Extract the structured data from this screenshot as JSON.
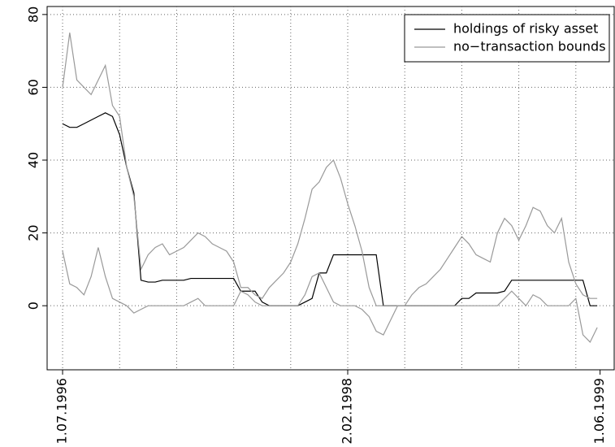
{
  "chart_data": {
    "type": "line",
    "x": [
      0,
      10,
      20,
      30,
      40,
      50,
      60,
      70,
      80,
      90,
      100,
      110,
      120,
      130,
      140,
      150,
      160,
      170,
      180,
      190,
      200,
      210,
      220,
      230,
      240,
      250,
      260,
      270,
      280,
      290,
      300,
      310,
      320,
      330,
      340,
      350,
      360,
      370,
      380,
      390,
      400,
      410,
      420,
      430,
      440,
      450,
      460,
      470,
      480,
      490,
      500,
      510,
      520,
      530,
      540,
      550,
      560,
      570,
      580,
      590,
      600,
      610,
      620,
      630,
      640,
      650,
      660,
      670,
      680,
      690,
      700,
      710,
      720,
      730,
      740,
      750
    ],
    "series": [
      {
        "name": "holdings of risky asset",
        "color": "#000000",
        "values": [
          50,
          49,
          49,
          50,
          51,
          52,
          53,
          52,
          47,
          38,
          31,
          7,
          6.5,
          6.5,
          7,
          7,
          7,
          7,
          7.5,
          7.5,
          7.5,
          7.5,
          7.5,
          7.5,
          7.5,
          4,
          4,
          4,
          1,
          0,
          0,
          0,
          0,
          0,
          1,
          2,
          9,
          9,
          14,
          14,
          14,
          14,
          14,
          14,
          14,
          0,
          0,
          0,
          0,
          0,
          0,
          0,
          0,
          0,
          0,
          0,
          2,
          2,
          3.5,
          3.5,
          3.5,
          3.5,
          4,
          7,
          7,
          7,
          7,
          7,
          7,
          7,
          7,
          7,
          7,
          7,
          0,
          0
        ]
      },
      {
        "name": "no−transaction bounds",
        "color": "#999999",
        "values": [
          60,
          75,
          62,
          60,
          58,
          62,
          66,
          55,
          52,
          38,
          30,
          10,
          14,
          16,
          17,
          14,
          15,
          16,
          18,
          20,
          19,
          17,
          16,
          15,
          12,
          5,
          5,
          3,
          2,
          5,
          7,
          9,
          12,
          17,
          24,
          32,
          34,
          38,
          40,
          35,
          28,
          22,
          15,
          5,
          0,
          0,
          0,
          0,
          0,
          3,
          5,
          6,
          8,
          10,
          13,
          16,
          19,
          17,
          14,
          13,
          12,
          20,
          24,
          22,
          18,
          22,
          27,
          26,
          22,
          20,
          24,
          12,
          6,
          3,
          2,
          2
        ]
      },
      {
        "color": "#999999",
        "values": [
          15,
          6,
          5,
          3,
          8,
          16,
          8,
          2,
          1,
          0,
          -2,
          -1,
          0,
          0,
          0,
          0,
          0,
          0,
          1,
          2,
          0,
          0,
          0,
          0,
          0,
          4,
          3,
          1,
          0,
          0,
          0,
          0,
          0,
          0,
          3,
          8,
          9,
          5,
          1,
          0,
          0,
          0,
          -1,
          -3,
          -7,
          -8,
          -4,
          0,
          0,
          0,
          0,
          0,
          0,
          0,
          0,
          0,
          0,
          0,
          0,
          0,
          0,
          0,
          2,
          4,
          2,
          0,
          3,
          2,
          0,
          0,
          0,
          0,
          2,
          -8,
          -10,
          -6
        ]
      }
    ],
    "xlim": [
      -21.7,
      773.8
    ],
    "xticks": [
      {
        "value": 0,
        "label": "1.07.1996"
      },
      {
        "value": 400,
        "label": "2.02.1998"
      },
      {
        "value": 754,
        "label": "1.06.1999"
      }
    ],
    "xgrid": [
      0,
      80,
      160,
      240,
      320,
      400,
      480,
      560,
      640,
      720
    ],
    "ylim": [
      -17.6,
      82.2
    ],
    "yticks": [
      0,
      20,
      40,
      60,
      80
    ],
    "grid": true,
    "legend": "top-right"
  }
}
